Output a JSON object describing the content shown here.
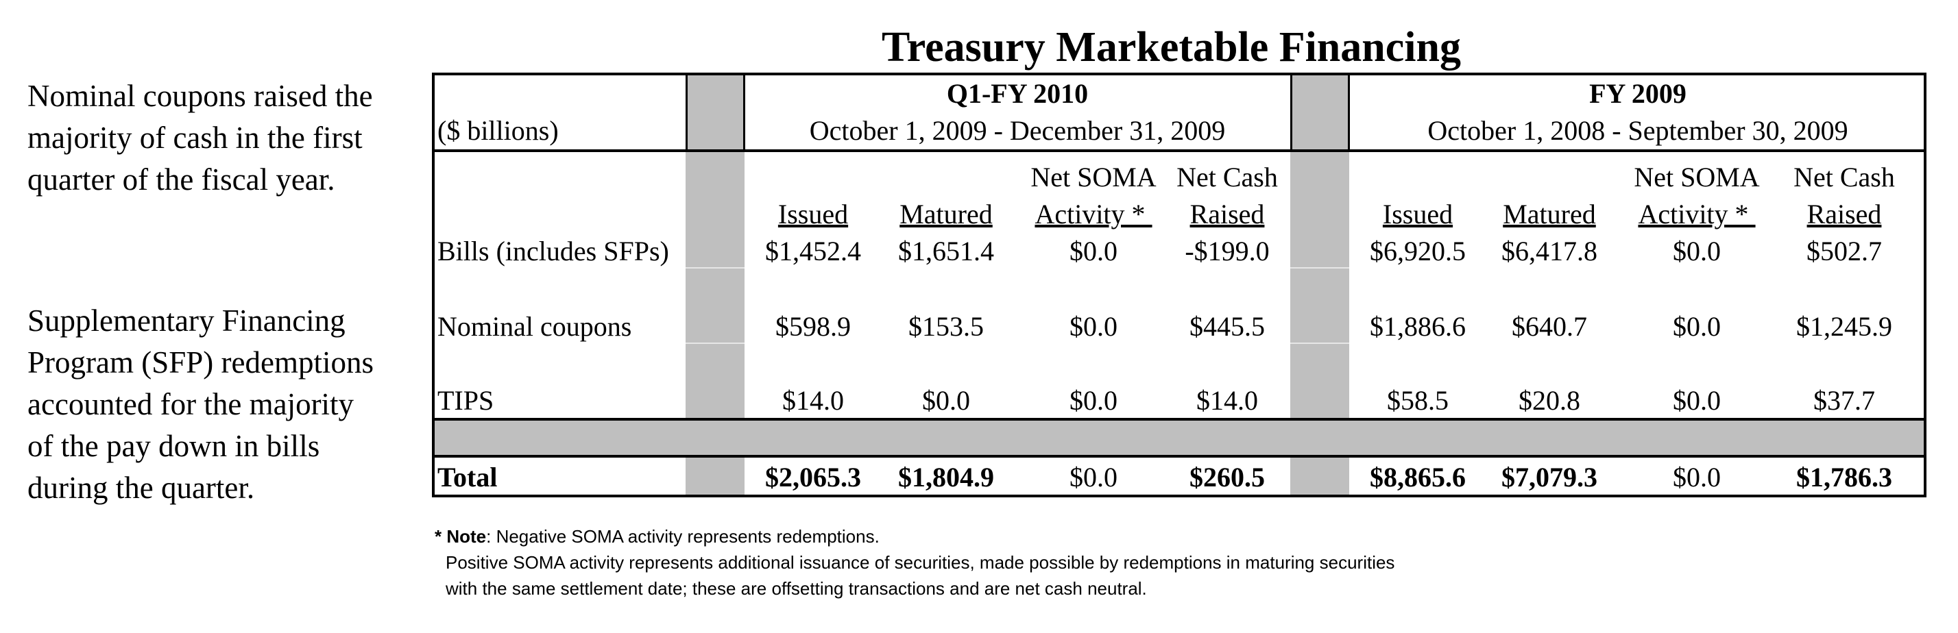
{
  "side_notes": [
    "Nominal coupons raised the majority of cash in the first quarter of the fiscal year.",
    "Supplementary Financing Program (SFP) redemptions accounted for the majority of the pay down in bills during the quarter."
  ],
  "title": "Treasury Marketable Financing",
  "table": {
    "units_label": "($ billions)",
    "periods": [
      {
        "name": "Q1-FY 2010",
        "range": "October 1, 2009 - December 31, 2009"
      },
      {
        "name": "FY 2009",
        "range": "October 1, 2008 - September 30, 2009"
      }
    ],
    "columns": [
      {
        "line1": "",
        "line2": "Issued"
      },
      {
        "line1": "",
        "line2": "Matured"
      },
      {
        "line1": "Net SOMA",
        "line2": "Activity * "
      },
      {
        "line1": "Net Cash",
        "line2": "Raised"
      }
    ],
    "rows": [
      {
        "label": "Bills (includes SFPs)",
        "q1": [
          "$1,452.4",
          "$1,651.4",
          "$0.0",
          "-$199.0"
        ],
        "fy": [
          "$6,920.5",
          "$6,417.8",
          "$0.0",
          "$502.7"
        ]
      },
      {
        "label": "Nominal coupons",
        "q1": [
          "$598.9",
          "$153.5",
          "$0.0",
          "$445.5"
        ],
        "fy": [
          "$1,886.6",
          "$640.7",
          "$0.0",
          "$1,245.9"
        ]
      },
      {
        "label": "TIPS",
        "q1": [
          "$14.0",
          "$0.0",
          "$0.0",
          "$14.0"
        ],
        "fy": [
          "$58.5",
          "$20.8",
          "$0.0",
          "$37.7"
        ]
      }
    ],
    "total": {
      "label": "Total",
      "q1": [
        "$2,065.3",
        "$1,804.9",
        "$0.0",
        "$260.5"
      ],
      "fy": [
        "$8,865.6",
        "$7,079.3",
        "$0.0",
        "$1,786.3"
      ]
    }
  },
  "note": {
    "marker": "* Note",
    "line1": ": Negative SOMA activity represents redemptions.",
    "line2": "Positive SOMA activity represents additional issuance of securities, made possible by redemptions in maturing securities",
    "line3": "with the same settlement date; these are offsetting transactions and are net cash neutral."
  }
}
